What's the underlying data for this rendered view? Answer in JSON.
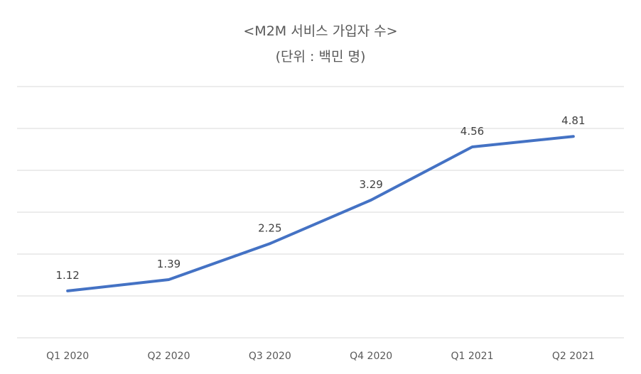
{
  "chart_data": {
    "type": "line",
    "title": "<M2M 서비스 가입자 수>",
    "subtitle": "(단위 : 백민 명)",
    "categories": [
      "Q1 2020",
      "Q2 2020",
      "Q3 2020",
      "Q4 2020",
      "Q1 2021",
      "Q2 2021"
    ],
    "series": [
      {
        "name": "M2M 서비스 가입자 수",
        "values": [
          1.12,
          1.39,
          2.25,
          3.29,
          4.56,
          4.81
        ],
        "color": "#4472C4"
      }
    ],
    "data_labels": [
      "1.12",
      "1.39",
      "2.25",
      "3.29",
      "4.56",
      "4.81"
    ],
    "ylim": [
      0,
      6
    ],
    "yticks": [
      0,
      1,
      2,
      3,
      4,
      5,
      6
    ],
    "grid": true,
    "legend": "none",
    "gridline_color": "#D9D9D9"
  }
}
